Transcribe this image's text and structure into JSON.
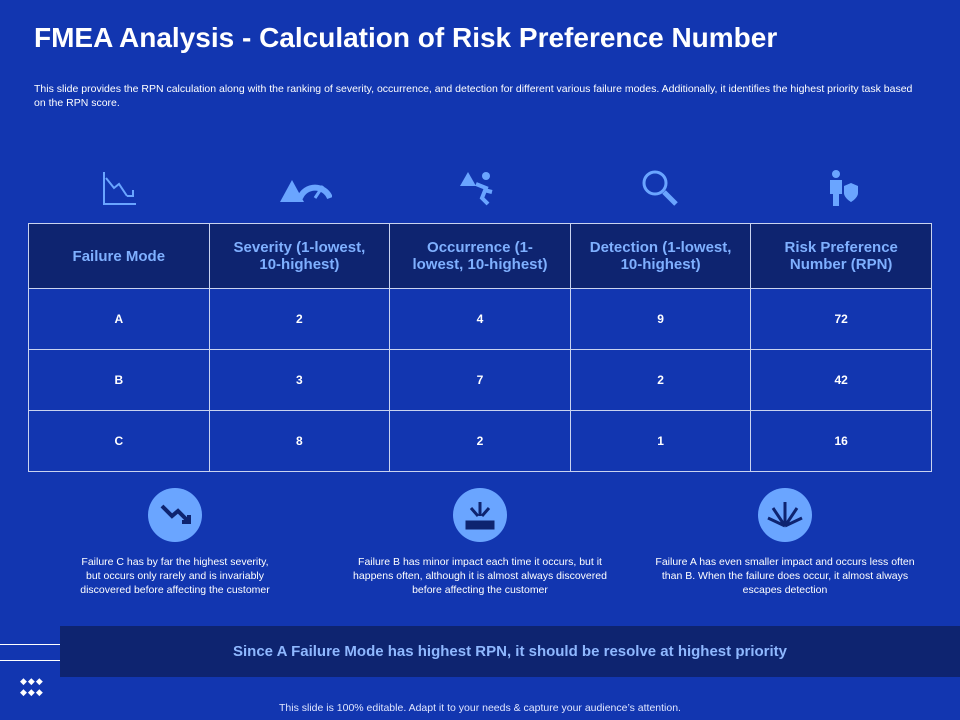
{
  "header": {
    "title": "FMEA Analysis - Calculation of Risk Preference Number",
    "description": "This slide provides the RPN calculation along with the ranking of severity, occurrence, and detection for different various failure modes. Additionally, it identifies the highest priority task based on the RPN score."
  },
  "table": {
    "columns": [
      "Failure Mode",
      "Severity (1-lowest, 10-highest)",
      "Occurrence (1-lowest, 10-highest)",
      "Detection (1-lowest, 10-highest)",
      "Risk Preference Number (RPN)"
    ],
    "rows": [
      [
        "A",
        "2",
        "4",
        "9",
        "72"
      ],
      [
        "B",
        "3",
        "7",
        "2",
        "42"
      ],
      [
        "C",
        "8",
        "2",
        "1",
        "16"
      ]
    ]
  },
  "notes": [
    "Failure C has by far the highest severity, but occurs only rarely and is invariably discovered before affecting the customer",
    "Failure B has minor impact each time it occurs, but it happens often, although it is almost always discovered before affecting the customer",
    "Failure A has even smaller impact and occurs less often than B. When the failure does occur, it almost always escapes detection"
  ],
  "conclusion": "Since A Failure Mode has highest RPN, it should be resolve at highest priority",
  "footer": "This slide is 100% editable. Adapt it to your needs & capture your audience’s attention."
}
